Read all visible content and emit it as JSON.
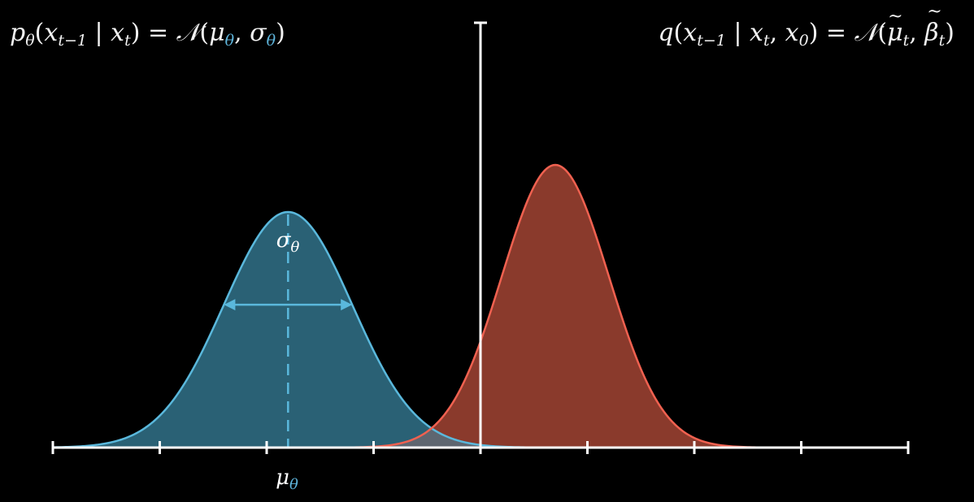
{
  "formulas": {
    "left": {
      "p": "p",
      "p_sub": "θ",
      "x1": "x",
      "x1_sub": "t−1",
      "x2": "x",
      "x2_sub": "t",
      "normal": "𝒩",
      "mu": "μ",
      "mu_sub": "θ",
      "sigma": "σ",
      "sigma_sub": "θ"
    },
    "right": {
      "q": "q",
      "x1": "x",
      "x1_sub": "t−1",
      "x2": "x",
      "x2_sub": "t",
      "x3": "x",
      "x3_sub": "0",
      "normal": "𝒩",
      "mu": "μ",
      "mu_sub": "t",
      "beta": "β",
      "beta_sub": "t"
    }
  },
  "labels": {
    "sigma": "σ",
    "sigma_sub": "θ",
    "mu": "μ",
    "mu_sub": "θ"
  },
  "colors": {
    "background": "#000000",
    "p_curve": "#5ab8dc",
    "p_fill": "#2a6175",
    "q_curve": "#f06150",
    "q_fill": "#8a3a2c",
    "overlap_fill": "#5e6670",
    "axis": "#ffffff"
  },
  "chart_data": {
    "type": "area",
    "xlim": [
      -4,
      4
    ],
    "ticks": [
      -4,
      -3,
      -2,
      -1,
      0,
      1,
      2,
      3,
      4
    ],
    "series": [
      {
        "mean": -1.8,
        "std": 0.6,
        "peak": 1.0
      },
      {
        "mean": 0.7,
        "std": 0.5,
        "peak": 1.2
      }
    ],
    "vertical_marker": 0
  }
}
